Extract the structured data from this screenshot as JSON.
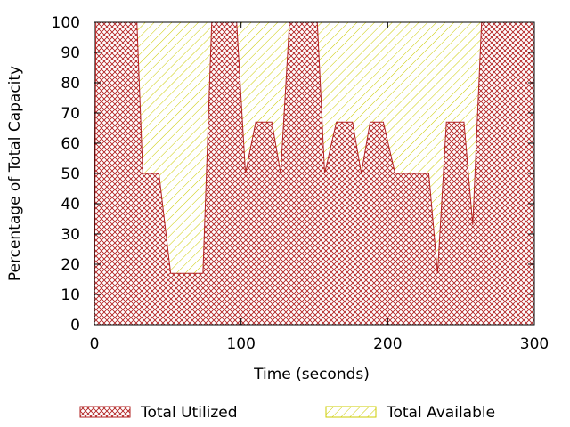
{
  "chart_data": {
    "type": "area",
    "xlabel": "Time (seconds)",
    "ylabel": "Percentage of Total Capacity",
    "xlim": [
      0,
      300
    ],
    "ylim": [
      0,
      100
    ],
    "x_ticks": [
      0,
      100,
      200,
      300
    ],
    "y_ticks": [
      0,
      10,
      20,
      30,
      40,
      50,
      60,
      70,
      80,
      90,
      100
    ],
    "grid": false,
    "legend_position": "bottom",
    "series": [
      {
        "name": "Total Utilized",
        "color": "#b22222",
        "pattern": "crosshatch",
        "x": [
          0,
          1,
          3,
          5,
          29,
          33,
          44,
          52,
          74,
          80,
          97,
          103,
          110,
          121,
          127,
          133,
          152,
          157,
          165,
          176,
          182,
          188,
          197,
          205,
          220,
          228,
          234,
          240,
          252,
          258,
          264,
          300
        ],
        "y": [
          0,
          100,
          100,
          100,
          100,
          50,
          50,
          17,
          17,
          100,
          100,
          50,
          67,
          67,
          50,
          100,
          100,
          50,
          67,
          67,
          50,
          67,
          67,
          50,
          50,
          50,
          17,
          67,
          67,
          33,
          100,
          100
        ]
      },
      {
        "name": "Total Available",
        "color": "#cccc00",
        "pattern": "diagonal",
        "x": [
          0,
          1,
          3,
          5,
          29,
          33,
          44,
          52,
          74,
          80,
          97,
          103,
          110,
          121,
          127,
          133,
          152,
          157,
          165,
          176,
          182,
          188,
          197,
          205,
          220,
          228,
          234,
          240,
          252,
          258,
          264,
          300
        ],
        "y": [
          0,
          17,
          83,
          100,
          100,
          100,
          100,
          100,
          100,
          100,
          100,
          100,
          100,
          100,
          100,
          100,
          100,
          100,
          100,
          100,
          100,
          100,
          100,
          100,
          100,
          100,
          100,
          100,
          100,
          100,
          100,
          100
        ]
      }
    ]
  }
}
